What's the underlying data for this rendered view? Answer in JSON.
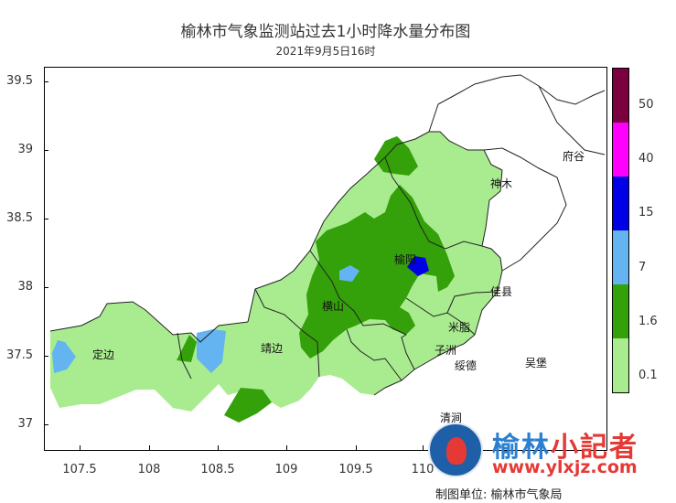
{
  "title": "榆林市气象监测站过去1小时降水量分布图",
  "subtitle": "2021年9月5日16时",
  "map": {
    "type": "precipitation-map",
    "x_ticks": [
      "107.5",
      "108",
      "108.5",
      "109",
      "109.5",
      "110"
    ],
    "y_ticks": [
      "39.5",
      "39",
      "38.5",
      "38",
      "37.5",
      "37"
    ],
    "places": [
      "府谷",
      "神木",
      "榆阳",
      "佳县",
      "横山",
      "米脂",
      "靖边",
      "子洲",
      "绥德",
      "吴堡",
      "定边",
      "清涧"
    ],
    "colors": {
      "light_green": "#a9ec8f",
      "green": "#34a00a",
      "light_blue": "#63b4f0",
      "blue": "#0000e6",
      "magenta": "#ff00ff",
      "maroon": "#7a0040"
    }
  },
  "legend": {
    "levels": [
      "50",
      "40",
      "15",
      "7",
      "1.6",
      "0.1"
    ],
    "colors": [
      "#7a0040",
      "#ff00ff",
      "#0000e6",
      "#63b4f0",
      "#34a00a",
      "#a9ec8f",
      "#ffffff"
    ]
  },
  "logo": {
    "brand_part1": "榆林",
    "brand_part2": "小記者",
    "url": "www.ylxjz.com",
    "circle_text": "榆林小记者"
  },
  "credit": "制图单位: 榆林市气象局"
}
